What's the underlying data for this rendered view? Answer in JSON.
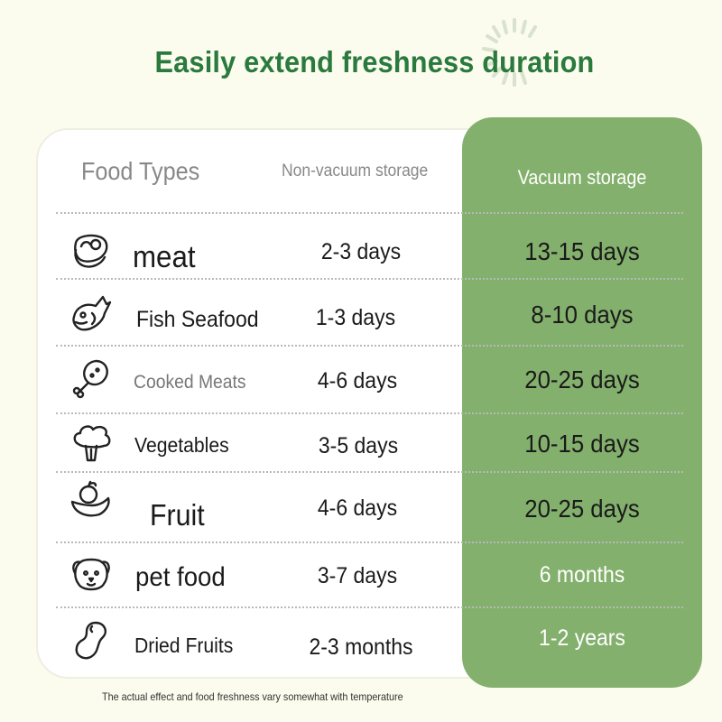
{
  "title": "Easily extend freshness duration",
  "headers": {
    "food_types": "Food Types",
    "non_vacuum": "Non-vacuum storage",
    "vacuum": "Vacuum storage"
  },
  "rows": [
    {
      "icon": "meat-steak-icon",
      "food": "meat",
      "non_vacuum": "2-3 days",
      "vacuum": "13-15 days"
    },
    {
      "icon": "fish-icon",
      "food": "Fish Seafood",
      "non_vacuum": "1-3 days",
      "vacuum": "8-10 days"
    },
    {
      "icon": "drumstick-icon",
      "food": "Cooked Meats",
      "non_vacuum": "4-6 days",
      "vacuum": "20-25 days"
    },
    {
      "icon": "broccoli-icon",
      "food": "Vegetables",
      "non_vacuum": "3-5 days",
      "vacuum": "10-15 days"
    },
    {
      "icon": "fruit-basket-icon",
      "food": "Fruit",
      "non_vacuum": "4-6 days",
      "vacuum": "20-25 days"
    },
    {
      "icon": "dog-face-icon",
      "food": "pet food",
      "non_vacuum": "3-7 days",
      "vacuum": "6 months"
    },
    {
      "icon": "peanut-icon",
      "food": "Dried Fruits",
      "non_vacuum": "2-3 months",
      "vacuum": "1-2 years"
    }
  ],
  "footnote": "The actual effect and food freshness vary somewhat with temperature",
  "colors": {
    "background": "#fbfbee",
    "title_green": "#2a7a3e",
    "vacuum_panel": "#83b06c",
    "card": "#ffffff"
  }
}
